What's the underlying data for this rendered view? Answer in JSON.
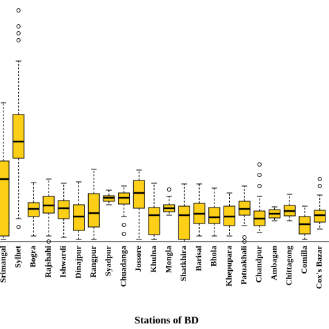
{
  "chart_data": {
    "type": "box",
    "xlabel": "Stations of BD",
    "color": "#fdd017",
    "ylim": [
      0,
      348
    ],
    "categories": [
      "Srimangal",
      "Sylhet",
      "Bogra",
      "Rajshahi",
      "Ishwardi",
      "Dinajpur",
      "Rangpur",
      "Syadpur",
      "Chuadanga",
      "Jossore",
      "Khulna",
      "Mongla",
      "Shatkhira",
      "Barisal",
      "Bhola",
      "Khepupara",
      "Patuakhali",
      "Chandpur",
      "Ambagan",
      "Chittagong",
      "Comilla",
      "Cox's Bazar"
    ],
    "boxes": [
      {
        "min": 3,
        "q1": 8,
        "median": 90,
        "q3": 116,
        "max": 200
      },
      {
        "min": 33,
        "q1": 120,
        "median": 144,
        "q3": 183,
        "max": 260,
        "outliers": [
          333,
          310,
          300,
          290,
          21
        ]
      },
      {
        "min": 8,
        "q1": 36,
        "median": 47,
        "q3": 56,
        "max": 85
      },
      {
        "min": 8,
        "q1": 41,
        "median": 52,
        "q3": 65,
        "max": 90,
        "outliers": [
          0
        ]
      },
      {
        "min": 6,
        "q1": 33,
        "median": 48,
        "q3": 59,
        "max": 84
      },
      {
        "min": 3,
        "q1": 16,
        "median": 36,
        "q3": 53,
        "max": 86
      },
      {
        "min": 3,
        "q1": 21,
        "median": 41,
        "q3": 69,
        "max": 104
      },
      {
        "min": 53,
        "q1": 58,
        "median": 63,
        "q3": 66,
        "max": 74
      },
      {
        "min": 36,
        "q1": 54,
        "median": 63,
        "q3": 70,
        "max": 80,
        "outliers": [
          24,
          11
        ]
      },
      {
        "min": 3,
        "q1": 48,
        "median": 70,
        "q3": 88,
        "max": 103
      },
      {
        "min": 3,
        "q1": 10,
        "median": 38,
        "q3": 49,
        "max": 84
      },
      {
        "min": 38,
        "q1": 43,
        "median": 48,
        "q3": 53,
        "max": 65,
        "outliers": [
          75
        ]
      },
      {
        "min": 0,
        "q1": 3,
        "median": 38,
        "q3": 51,
        "max": 83
      },
      {
        "min": 8,
        "q1": 26,
        "median": 40,
        "q3": 55,
        "max": 83
      },
      {
        "min": 8,
        "q1": 26,
        "median": 35,
        "q3": 49,
        "max": 77
      },
      {
        "min": 8,
        "q1": 23,
        "median": 36,
        "q3": 51,
        "max": 70
      },
      {
        "min": 23,
        "q1": 38,
        "median": 47,
        "q3": 58,
        "max": 80,
        "outliers": [
          6,
          0
        ]
      },
      {
        "min": 13,
        "q1": 23,
        "median": 33,
        "q3": 44,
        "max": 65,
        "outliers": [
          111,
          96,
          80
        ]
      },
      {
        "min": 30,
        "q1": 34,
        "median": 40,
        "q3": 46,
        "max": 50
      },
      {
        "min": 30,
        "q1": 37,
        "median": 44,
        "q3": 52,
        "max": 68
      },
      {
        "min": 3,
        "q1": 11,
        "median": 25,
        "q3": 36,
        "max": 51
      },
      {
        "min": 18,
        "q1": 28,
        "median": 38,
        "q3": 45,
        "max": 67,
        "outliers": [
          90,
          80
        ]
      }
    ]
  }
}
